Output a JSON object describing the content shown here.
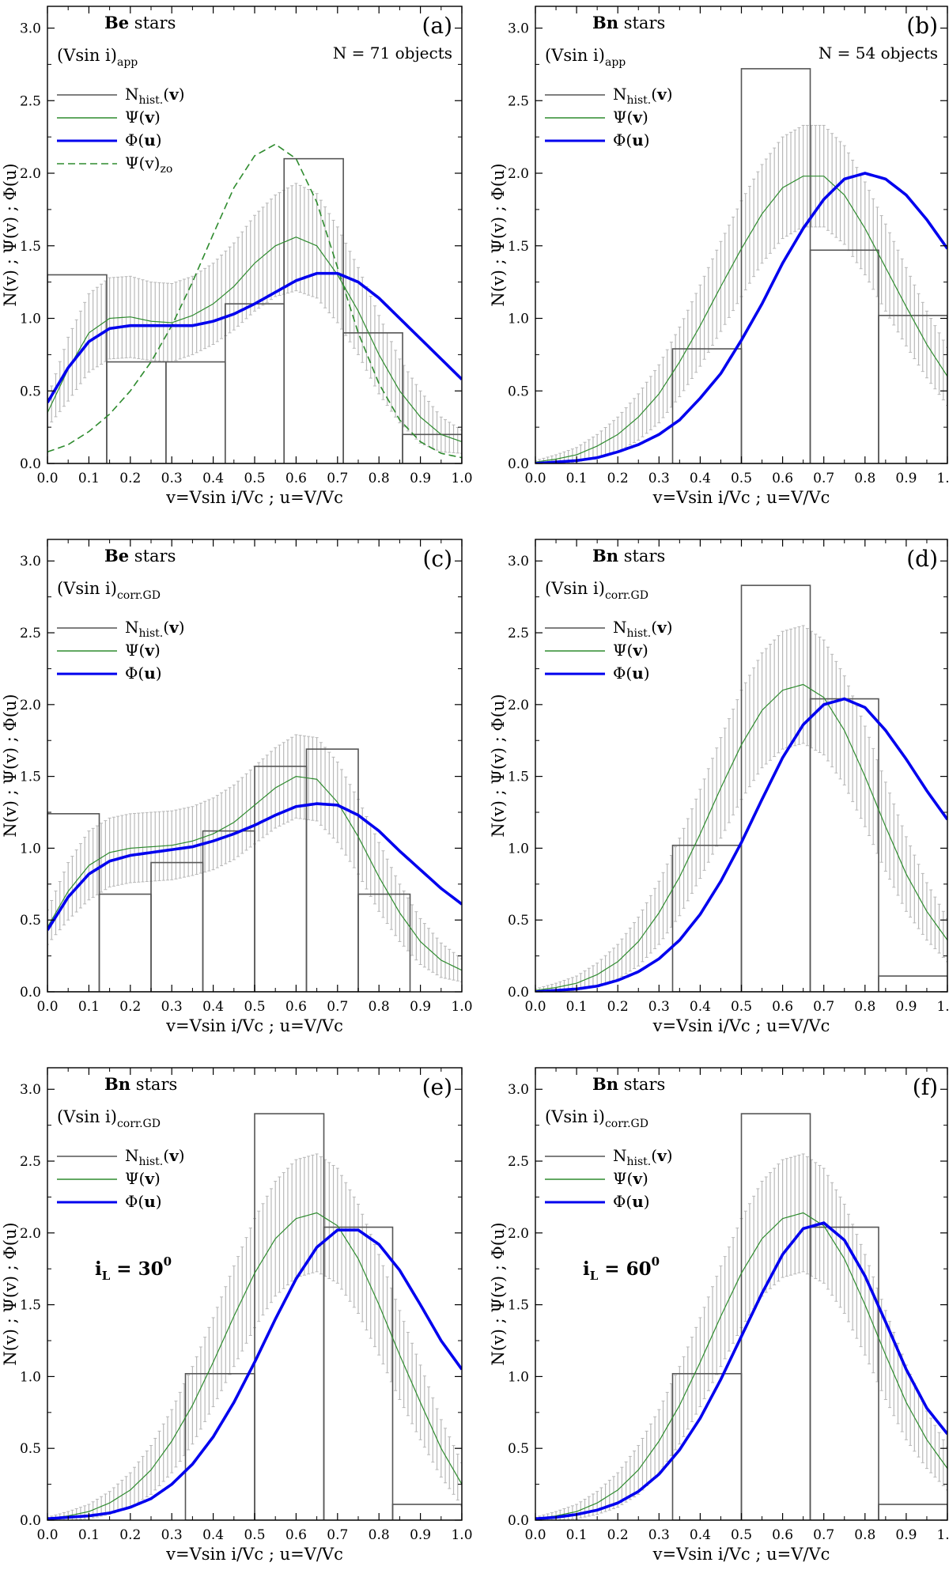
{
  "panel_common": {
    "xlabel": "v=Vsin i/Vc ; u=V/Vc",
    "ylabel": "N(v) ; Ψ(v) ; Φ(u)",
    "xlim": [
      0.0,
      1.0
    ],
    "ylim": [
      0.0,
      3.15
    ],
    "xticks": [
      "0.0",
      "0.1",
      "0.2",
      "0.3",
      "0.4",
      "0.5",
      "0.6",
      "0.7",
      "0.8",
      "0.9",
      "1.0"
    ],
    "yticks": [
      "0.0",
      "0.5",
      "1.0",
      "1.5",
      "2.0",
      "2.5",
      "3.0"
    ],
    "colors": {
      "hist": "#555555",
      "psi": "#2e8b2e",
      "phi": "#0000ee",
      "err": "#b8b8b8",
      "zo": "#2e8b2e"
    }
  },
  "chart_data": [
    {
      "type": "line",
      "tag": "(a)",
      "title_bold": "Be",
      "title_rest": " stars",
      "sub_main": "(Vsin i)",
      "sub_script": "app",
      "n_objects": "N = 71 objects",
      "legend": [
        {
          "main": "N",
          "sub": "hist.",
          "arg": "(v)",
          "style": "hist"
        },
        {
          "main": "Ψ",
          "sub": "",
          "arg": "(v)",
          "style": "psi"
        },
        {
          "main": "Φ",
          "sub": "",
          "arg": "(u)",
          "style": "phi"
        },
        {
          "main": "Ψ(v)",
          "sub": "zo",
          "arg": "",
          "style": "zo"
        }
      ],
      "histogram": {
        "edges": [
          0,
          0.143,
          0.286,
          0.429,
          0.571,
          0.714,
          0.857,
          1.0
        ],
        "values": [
          1.3,
          0.7,
          0.7,
          1.1,
          2.1,
          0.9,
          0.2
        ]
      },
      "psi": {
        "x": [
          0,
          0.05,
          0.1,
          0.15,
          0.2,
          0.25,
          0.3,
          0.35,
          0.4,
          0.45,
          0.5,
          0.55,
          0.6,
          0.65,
          0.7,
          0.75,
          0.8,
          0.85,
          0.9,
          0.95,
          1.0
        ],
        "y": [
          0.35,
          0.65,
          0.9,
          1.0,
          1.01,
          0.98,
          0.97,
          1.02,
          1.1,
          1.22,
          1.38,
          1.5,
          1.56,
          1.5,
          1.3,
          1.05,
          0.75,
          0.5,
          0.32,
          0.2,
          0.15
        ],
        "err": [
          0.1,
          0.22,
          0.27,
          0.28,
          0.28,
          0.27,
          0.27,
          0.27,
          0.28,
          0.3,
          0.33,
          0.35,
          0.37,
          0.36,
          0.33,
          0.3,
          0.27,
          0.22,
          0.18,
          0.12,
          0.08
        ]
      },
      "phi": {
        "x": [
          0,
          0.05,
          0.1,
          0.15,
          0.2,
          0.25,
          0.3,
          0.35,
          0.4,
          0.45,
          0.5,
          0.55,
          0.6,
          0.65,
          0.7,
          0.75,
          0.8,
          0.85,
          0.9,
          0.95,
          1.0
        ],
        "y": [
          0.42,
          0.66,
          0.84,
          0.93,
          0.95,
          0.95,
          0.95,
          0.95,
          0.98,
          1.03,
          1.1,
          1.18,
          1.26,
          1.31,
          1.31,
          1.25,
          1.14,
          1.0,
          0.86,
          0.72,
          0.58
        ]
      },
      "zo": {
        "x": [
          0,
          0.05,
          0.1,
          0.15,
          0.2,
          0.25,
          0.3,
          0.35,
          0.4,
          0.45,
          0.5,
          0.55,
          0.6,
          0.65,
          0.7,
          0.75,
          0.8,
          0.85,
          0.9,
          0.95,
          1.0
        ],
        "y": [
          0.08,
          0.13,
          0.22,
          0.34,
          0.5,
          0.7,
          0.95,
          1.25,
          1.58,
          1.9,
          2.12,
          2.2,
          2.1,
          1.8,
          1.35,
          0.9,
          0.55,
          0.3,
          0.15,
          0.07,
          0.04
        ]
      }
    },
    {
      "type": "line",
      "tag": "(b)",
      "title_bold": "Bn",
      "title_rest": " stars",
      "sub_main": "(Vsin i)",
      "sub_script": "app",
      "n_objects": "N = 54 objects",
      "legend": [
        {
          "main": "N",
          "sub": "hist.",
          "arg": "(v)",
          "style": "hist"
        },
        {
          "main": "Ψ",
          "sub": "",
          "arg": "(v)",
          "style": "psi"
        },
        {
          "main": "Φ",
          "sub": "",
          "arg": "(u)",
          "style": "phi"
        }
      ],
      "histogram": {
        "edges": [
          0.333,
          0.5,
          0.667,
          0.833,
          1.0
        ],
        "values": [
          0.79,
          2.72,
          1.47,
          1.02
        ]
      },
      "psi": {
        "x": [
          0,
          0.05,
          0.1,
          0.15,
          0.2,
          0.25,
          0.3,
          0.35,
          0.4,
          0.45,
          0.5,
          0.55,
          0.6,
          0.65,
          0.7,
          0.75,
          0.8,
          0.85,
          0.9,
          0.95,
          1.0
        ],
        "y": [
          0.01,
          0.03,
          0.06,
          0.12,
          0.2,
          0.32,
          0.48,
          0.7,
          0.95,
          1.22,
          1.48,
          1.72,
          1.9,
          1.98,
          1.98,
          1.85,
          1.62,
          1.35,
          1.08,
          0.82,
          0.6
        ],
        "err": [
          0.01,
          0.03,
          0.05,
          0.08,
          0.12,
          0.16,
          0.2,
          0.24,
          0.28,
          0.31,
          0.33,
          0.34,
          0.35,
          0.35,
          0.35,
          0.34,
          0.32,
          0.3,
          0.27,
          0.23,
          0.2
        ]
      },
      "phi": {
        "x": [
          0,
          0.05,
          0.1,
          0.15,
          0.2,
          0.25,
          0.3,
          0.35,
          0.4,
          0.45,
          0.5,
          0.55,
          0.6,
          0.65,
          0.7,
          0.75,
          0.8,
          0.85,
          0.9,
          0.95,
          1.0
        ],
        "y": [
          0.0,
          0.01,
          0.02,
          0.04,
          0.08,
          0.13,
          0.2,
          0.3,
          0.45,
          0.62,
          0.85,
          1.1,
          1.38,
          1.62,
          1.82,
          1.96,
          2.0,
          1.96,
          1.85,
          1.68,
          1.48
        ]
      }
    },
    {
      "type": "line",
      "tag": "(c)",
      "title_bold": "Be",
      "title_rest": " stars",
      "sub_main": "(Vsin i)",
      "sub_script": "corr.GD",
      "n_objects": "",
      "legend": [
        {
          "main": "N",
          "sub": "hist.",
          "arg": "(v)",
          "style": "hist"
        },
        {
          "main": "Ψ",
          "sub": "",
          "arg": "(v)",
          "style": "psi"
        },
        {
          "main": "Φ",
          "sub": "",
          "arg": "(u)",
          "style": "phi"
        }
      ],
      "histogram": {
        "edges": [
          0,
          0.125,
          0.25,
          0.375,
          0.5,
          0.625,
          0.75,
          0.875,
          1.0
        ],
        "values": [
          1.24,
          0.68,
          0.9,
          1.12,
          1.57,
          1.69,
          0.68,
          0.0
        ]
      },
      "psi": {
        "x": [
          0,
          0.05,
          0.1,
          0.15,
          0.2,
          0.25,
          0.3,
          0.35,
          0.4,
          0.45,
          0.5,
          0.55,
          0.6,
          0.65,
          0.7,
          0.75,
          0.8,
          0.85,
          0.9,
          0.95,
          1.0
        ],
        "y": [
          0.45,
          0.7,
          0.88,
          0.97,
          1.0,
          1.01,
          1.02,
          1.05,
          1.1,
          1.18,
          1.3,
          1.42,
          1.5,
          1.48,
          1.32,
          1.08,
          0.8,
          0.55,
          0.35,
          0.22,
          0.15
        ],
        "err": [
          0.12,
          0.2,
          0.24,
          0.24,
          0.24,
          0.24,
          0.24,
          0.24,
          0.25,
          0.26,
          0.27,
          0.28,
          0.29,
          0.29,
          0.28,
          0.26,
          0.24,
          0.2,
          0.16,
          0.12,
          0.08
        ]
      },
      "phi": {
        "x": [
          0,
          0.05,
          0.1,
          0.15,
          0.2,
          0.25,
          0.3,
          0.35,
          0.4,
          0.45,
          0.5,
          0.55,
          0.6,
          0.65,
          0.7,
          0.75,
          0.8,
          0.85,
          0.9,
          0.95,
          1.0
        ],
        "y": [
          0.43,
          0.66,
          0.82,
          0.91,
          0.95,
          0.97,
          0.99,
          1.01,
          1.05,
          1.1,
          1.16,
          1.23,
          1.29,
          1.31,
          1.3,
          1.23,
          1.12,
          0.98,
          0.85,
          0.72,
          0.61
        ]
      }
    },
    {
      "type": "line",
      "tag": "(d)",
      "title_bold": "Bn",
      "title_rest": " stars",
      "sub_main": "(Vsin i)",
      "sub_script": "corr.GD",
      "n_objects": "",
      "legend": [
        {
          "main": "N",
          "sub": "hist.",
          "arg": "(v)",
          "style": "hist"
        },
        {
          "main": "Ψ",
          "sub": "",
          "arg": "(v)",
          "style": "psi"
        },
        {
          "main": "Φ",
          "sub": "",
          "arg": "(u)",
          "style": "phi"
        }
      ],
      "histogram": {
        "edges": [
          0.333,
          0.5,
          0.667,
          0.833,
          1.0
        ],
        "values": [
          1.02,
          2.83,
          2.04,
          0.11
        ]
      },
      "psi": {
        "x": [
          0,
          0.05,
          0.1,
          0.15,
          0.2,
          0.25,
          0.3,
          0.35,
          0.4,
          0.45,
          0.5,
          0.55,
          0.6,
          0.65,
          0.7,
          0.75,
          0.8,
          0.85,
          0.9,
          0.95,
          1.0
        ],
        "y": [
          0.01,
          0.03,
          0.06,
          0.12,
          0.21,
          0.35,
          0.55,
          0.8,
          1.1,
          1.42,
          1.72,
          1.96,
          2.1,
          2.14,
          2.05,
          1.82,
          1.5,
          1.15,
          0.82,
          0.56,
          0.36
        ],
        "err": [
          0.01,
          0.03,
          0.05,
          0.08,
          0.12,
          0.17,
          0.22,
          0.27,
          0.31,
          0.35,
          0.38,
          0.4,
          0.41,
          0.41,
          0.4,
          0.38,
          0.35,
          0.31,
          0.26,
          0.2,
          0.15
        ]
      },
      "phi": {
        "x": [
          0,
          0.05,
          0.1,
          0.15,
          0.2,
          0.25,
          0.3,
          0.35,
          0.4,
          0.45,
          0.5,
          0.55,
          0.6,
          0.65,
          0.7,
          0.75,
          0.8,
          0.85,
          0.9,
          0.95,
          1.0
        ],
        "y": [
          0.0,
          0.01,
          0.02,
          0.04,
          0.08,
          0.14,
          0.23,
          0.36,
          0.54,
          0.77,
          1.04,
          1.34,
          1.63,
          1.86,
          2.0,
          2.04,
          1.98,
          1.82,
          1.62,
          1.4,
          1.2
        ]
      }
    },
    {
      "type": "line",
      "tag": "(e)",
      "title_bold": "Bn",
      "title_rest": " stars",
      "sub_main": "(Vsin i)",
      "sub_script": "corr.GD",
      "n_objects": "",
      "incl": {
        "main": "i",
        "sub": "L",
        "value": " = 30",
        "sup": "0"
      },
      "legend": [
        {
          "main": "N",
          "sub": "hist.",
          "arg": "(v)",
          "style": "hist"
        },
        {
          "main": "Ψ",
          "sub": "",
          "arg": "(v)",
          "style": "psi"
        },
        {
          "main": "Φ",
          "sub": "",
          "arg": "(u)",
          "style": "phi"
        }
      ],
      "histogram": {
        "edges": [
          0.333,
          0.5,
          0.667,
          0.833,
          1.0
        ],
        "values": [
          1.02,
          2.83,
          2.04,
          0.11
        ]
      },
      "psi": {
        "x": [
          0,
          0.05,
          0.1,
          0.15,
          0.2,
          0.25,
          0.3,
          0.35,
          0.4,
          0.45,
          0.5,
          0.55,
          0.6,
          0.65,
          0.7,
          0.75,
          0.8,
          0.85,
          0.9,
          0.95,
          1.0
        ],
        "y": [
          0.01,
          0.03,
          0.06,
          0.12,
          0.21,
          0.35,
          0.55,
          0.8,
          1.1,
          1.42,
          1.72,
          1.96,
          2.1,
          2.14,
          2.05,
          1.82,
          1.5,
          1.15,
          0.82,
          0.5,
          0.25
        ],
        "err": [
          0.01,
          0.03,
          0.05,
          0.08,
          0.12,
          0.17,
          0.22,
          0.27,
          0.31,
          0.35,
          0.38,
          0.4,
          0.41,
          0.41,
          0.4,
          0.38,
          0.35,
          0.31,
          0.26,
          0.2,
          0.15
        ]
      },
      "phi": {
        "x": [
          0,
          0.05,
          0.1,
          0.15,
          0.2,
          0.25,
          0.3,
          0.35,
          0.4,
          0.45,
          0.5,
          0.55,
          0.6,
          0.65,
          0.7,
          0.75,
          0.8,
          0.85,
          0.9,
          0.95,
          1.0
        ],
        "y": [
          0.01,
          0.02,
          0.03,
          0.05,
          0.09,
          0.15,
          0.25,
          0.39,
          0.58,
          0.82,
          1.1,
          1.4,
          1.68,
          1.9,
          2.02,
          2.02,
          1.92,
          1.74,
          1.5,
          1.25,
          1.05
        ]
      }
    },
    {
      "type": "line",
      "tag": "(f)",
      "title_bold": "Bn",
      "title_rest": " stars",
      "sub_main": "(Vsin i)",
      "sub_script": "corr.GD",
      "n_objects": "",
      "incl": {
        "main": "i",
        "sub": "L",
        "value": " = 60",
        "sup": "0"
      },
      "legend": [
        {
          "main": "N",
          "sub": "hist.",
          "arg": "(v)",
          "style": "hist"
        },
        {
          "main": "Ψ",
          "sub": "",
          "arg": "(v)",
          "style": "psi"
        },
        {
          "main": "Φ",
          "sub": "",
          "arg": "(u)",
          "style": "phi"
        }
      ],
      "histogram": {
        "edges": [
          0.333,
          0.5,
          0.667,
          0.833,
          1.0
        ],
        "values": [
          1.02,
          2.83,
          2.04,
          0.11
        ]
      },
      "psi": {
        "x": [
          0,
          0.05,
          0.1,
          0.15,
          0.2,
          0.25,
          0.3,
          0.35,
          0.4,
          0.45,
          0.5,
          0.55,
          0.6,
          0.65,
          0.7,
          0.75,
          0.8,
          0.85,
          0.9,
          0.95,
          1.0
        ],
        "y": [
          0.01,
          0.03,
          0.06,
          0.12,
          0.21,
          0.35,
          0.55,
          0.8,
          1.1,
          1.42,
          1.72,
          1.96,
          2.1,
          2.14,
          2.05,
          1.82,
          1.5,
          1.15,
          0.82,
          0.56,
          0.36
        ],
        "err": [
          0.01,
          0.03,
          0.05,
          0.08,
          0.12,
          0.17,
          0.22,
          0.27,
          0.31,
          0.35,
          0.38,
          0.4,
          0.41,
          0.41,
          0.4,
          0.38,
          0.35,
          0.31,
          0.26,
          0.2,
          0.15
        ]
      },
      "phi": {
        "x": [
          0,
          0.05,
          0.1,
          0.15,
          0.2,
          0.25,
          0.3,
          0.35,
          0.4,
          0.45,
          0.5,
          0.55,
          0.6,
          0.65,
          0.7,
          0.75,
          0.8,
          0.85,
          0.9,
          0.95,
          1.0
        ],
        "y": [
          0.01,
          0.02,
          0.04,
          0.07,
          0.12,
          0.2,
          0.32,
          0.49,
          0.71,
          0.98,
          1.28,
          1.58,
          1.85,
          2.03,
          2.07,
          1.95,
          1.7,
          1.38,
          1.05,
          0.78,
          0.6
        ]
      }
    }
  ]
}
